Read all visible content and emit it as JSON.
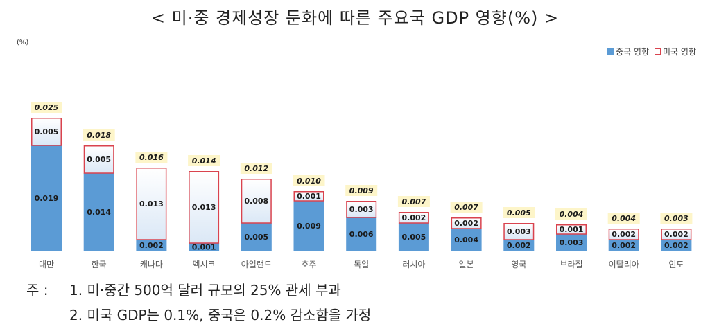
{
  "title": "< 미·중 경제성장 둔화에 따른 주요국 GDP 영향(%) >",
  "y_unit": "(%)",
  "colors": {
    "china": "#5b9bd5",
    "us_border": "#d9434e",
    "total_bg": "#fdf5c9"
  },
  "chart_data": {
    "type": "bar",
    "stacked": true,
    "title": "< 미·중 경제성장 둔화에 따른 주요국 GDP 영향(%) >",
    "ylabel": "(%)",
    "legend_position": "top-right",
    "categories": [
      "대만",
      "한국",
      "캐나다",
      "멕시코",
      "아일랜드",
      "호주",
      "독일",
      "러시아",
      "일본",
      "영국",
      "브라질",
      "이탈리아",
      "인도"
    ],
    "series": [
      {
        "name": "중국 영향",
        "values": [
          "0.019",
          "0.014",
          "0.002",
          "0.001",
          "0.005",
          "0.009",
          "0.006",
          "0.005",
          "0.004",
          "0.002",
          "0.003",
          "0.002",
          "0.002"
        ]
      },
      {
        "name": "미국 영향",
        "values": [
          "0.005",
          "0.005",
          "0.013",
          "0.013",
          "0.008",
          "0.001",
          "0.003",
          "0.002",
          "0.002",
          "0.003",
          "0.001",
          "0.002",
          "0.002"
        ]
      }
    ],
    "totals": [
      "0.025",
      "0.018",
      "0.016",
      "0.014",
      "0.012",
      "0.010",
      "0.009",
      "0.007",
      "0.007",
      "0.005",
      "0.004",
      "0.004",
      "0.003"
    ],
    "ylim": [
      0,
      0.025
    ]
  },
  "notes": {
    "prefix": "주 :",
    "line1": "1. 미·중간 500억 달러 규모의 25% 관세 부과",
    "line2": "2. 미국 GDP는 0.1%, 중국은 0.2% 감소함을 가정"
  }
}
